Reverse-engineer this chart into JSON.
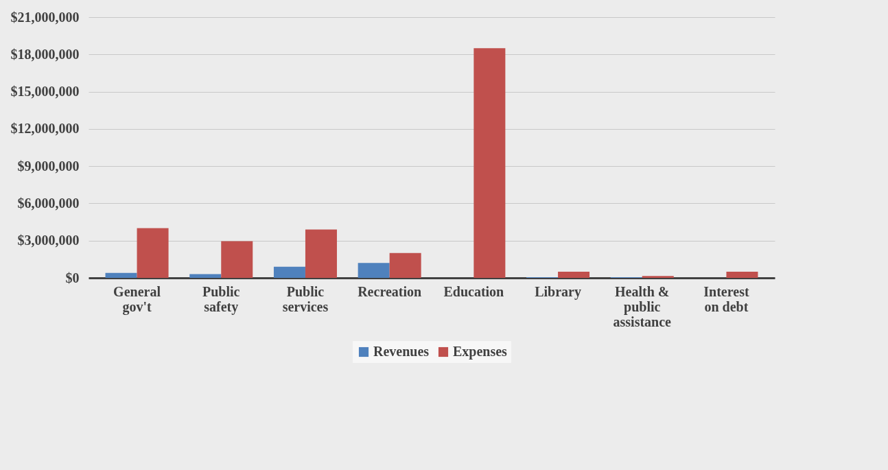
{
  "chart_data": {
    "type": "bar",
    "categories": [
      "General gov't",
      "Public safety",
      "Public services",
      "Recreation",
      "Education",
      "Library",
      "Health & public assistance",
      "Interest on debt"
    ],
    "series": [
      {
        "name": "Revenues",
        "color": "#4f81bd",
        "values": [
          400000,
          300000,
          900000,
          1200000,
          0,
          50000,
          50000,
          0
        ]
      },
      {
        "name": "Expenses",
        "color": "#c0504d",
        "values": [
          4000000,
          2950000,
          3900000,
          2000000,
          18500000,
          500000,
          150000,
          500000
        ]
      }
    ],
    "ylim": [
      0,
      21000000
    ],
    "yticks": [
      {
        "value": 0,
        "label": "$0"
      },
      {
        "value": 3000000,
        "label": "$3,000,000"
      },
      {
        "value": 6000000,
        "label": "$6,000,000"
      },
      {
        "value": 9000000,
        "label": "$9,000,000"
      },
      {
        "value": 12000000,
        "label": "$12,000,000"
      },
      {
        "value": 15000000,
        "label": "$15,000,000"
      },
      {
        "value": 18000000,
        "label": "$18,000,000"
      },
      {
        "value": 21000000,
        "label": "$21,000,000"
      }
    ],
    "grid": "y",
    "legend": "bottom"
  }
}
